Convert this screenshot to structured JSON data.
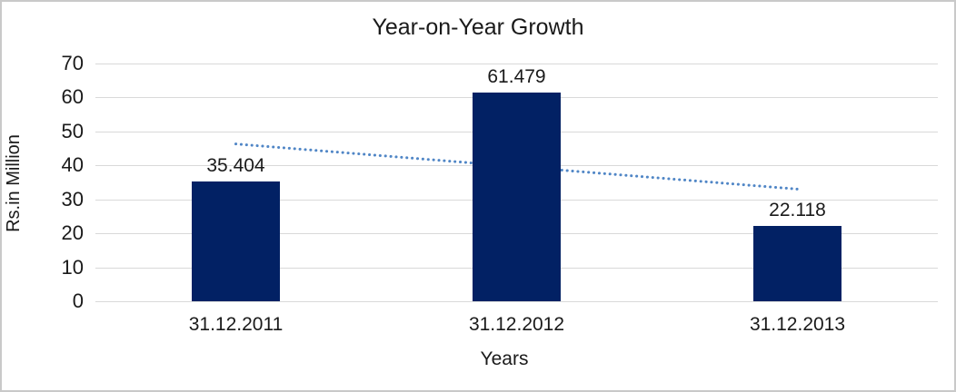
{
  "chart_data": {
    "type": "bar",
    "title": "Year-on-Year Growth",
    "xlabel": "Years",
    "ylabel": "Rs.in Million",
    "categories": [
      "31.12.2011",
      "31.12.2012",
      "31.12.2013"
    ],
    "values": [
      35.404,
      61.479,
      22.118
    ],
    "data_labels": [
      "35.404",
      "61.479",
      "22.118"
    ],
    "ylim": [
      0,
      70
    ],
    "yticks": [
      0,
      10,
      20,
      30,
      40,
      50,
      60,
      70
    ],
    "grid": true,
    "legend": "none",
    "bar_color": "#022164",
    "gridline_color": "#d9d9d9",
    "text_color": "#1a1a1a",
    "border_color": "#c9c9c9",
    "trendline": {
      "type": "linear",
      "style": "dotted",
      "color": "#5086C6",
      "start_value": 46.3,
      "end_value": 33.0
    }
  }
}
